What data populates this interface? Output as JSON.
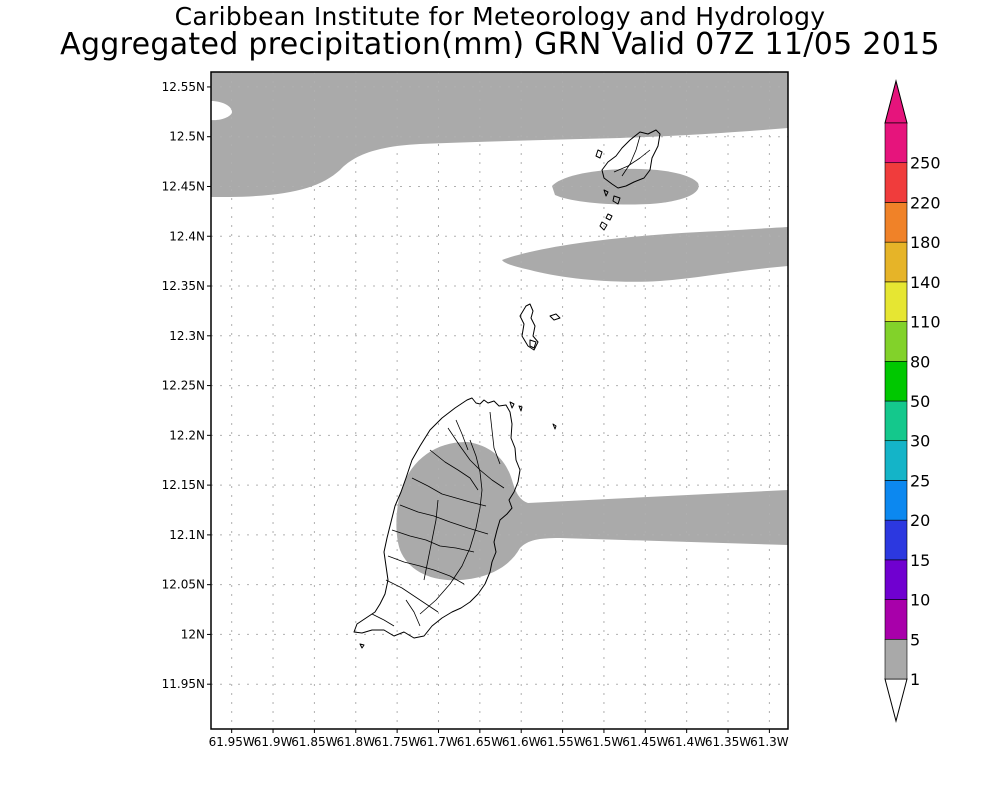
{
  "title": {
    "line1": "Caribbean Institute for Meteorology and Hydrology",
    "line2": "Aggregated precipitation(mm) GRN Valid 07Z 11/05 2015"
  },
  "map": {
    "lat_labels": [
      "12.55N",
      "12.5N",
      "12.45N",
      "12.4N",
      "12.35N",
      "12.3N",
      "12.25N",
      "12.2N",
      "12.15N",
      "12.1N",
      "12.05N",
      "12N",
      "11.95N"
    ],
    "lon_labels": [
      "61.95W",
      "61.9W",
      "61.85W",
      "61.8W",
      "61.75W",
      "61.7W",
      "61.65W",
      "61.6W",
      "61.55W",
      "61.5W",
      "61.45W",
      "61.4W",
      "61.35W",
      "61.3W"
    ],
    "lat_values": [
      12.55,
      12.5,
      12.45,
      12.4,
      12.35,
      12.3,
      12.25,
      12.2,
      12.15,
      12.1,
      12.05,
      12.0,
      11.95
    ],
    "lon_values": [
      -61.95,
      -61.9,
      -61.85,
      -61.8,
      -61.75,
      -61.7,
      -61.65,
      -61.6,
      -61.55,
      -61.5,
      -61.45,
      -61.4,
      -61.35,
      -61.3
    ],
    "lat_range": [
      11.905,
      12.565
    ],
    "lon_range": [
      -61.975,
      -61.2775
    ],
    "grid": "dotted",
    "shaded_class": "1-5 mm"
  },
  "colorbar": {
    "labels": [
      "1",
      "5",
      "10",
      "15",
      "20",
      "25",
      "30",
      "50",
      "80",
      "110",
      "140",
      "180",
      "220",
      "250"
    ],
    "colors": [
      "#a9a9a9",
      "#a800aa",
      "#7000d0",
      "#2c38e0",
      "#0c88f0",
      "#14b4c8",
      "#14c88c",
      "#00c800",
      "#82d22a",
      "#e6e632",
      "#e6b428",
      "#f08228",
      "#f03c3c",
      "#e6147c"
    ],
    "top_color": "#e6147c",
    "bottom_color": "#ffffff"
  }
}
